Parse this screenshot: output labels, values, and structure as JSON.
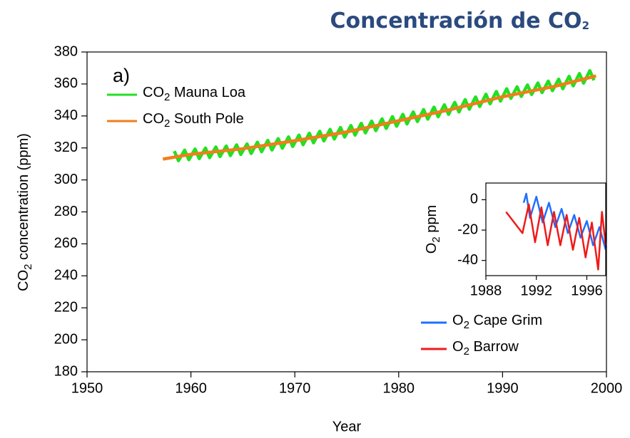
{
  "chart_data": [
    {
      "type": "line",
      "title": "Concentración de CO2",
      "annotation": "a)",
      "xlabel": "Year",
      "ylabel": "CO2 concentration (ppm)",
      "xlim": [
        1950,
        2000
      ],
      "xticks": [
        1950,
        1960,
        1970,
        1980,
        1990,
        2000
      ],
      "ylim": [
        180,
        380
      ],
      "yticks": [
        180,
        200,
        220,
        240,
        260,
        280,
        300,
        320,
        340,
        360,
        380
      ],
      "legend": "upper left",
      "series": [
        {
          "name": "CO2 Mauna Loa",
          "color": "#22e022",
          "x": [
            1958.4,
            1958.8,
            1959.4,
            1959.8,
            1960.4,
            1960.8,
            1961.4,
            1961.8,
            1962.4,
            1962.8,
            1963.4,
            1963.8,
            1964.4,
            1964.8,
            1965.4,
            1965.8,
            1966.4,
            1966.8,
            1967.4,
            1967.8,
            1968.4,
            1968.8,
            1969.4,
            1969.8,
            1970.4,
            1970.8,
            1971.4,
            1971.8,
            1972.4,
            1972.8,
            1973.4,
            1973.8,
            1974.4,
            1974.8,
            1975.4,
            1975.8,
            1976.4,
            1976.8,
            1977.4,
            1977.8,
            1978.4,
            1978.8,
            1979.4,
            1979.8,
            1980.4,
            1980.8,
            1981.4,
            1981.8,
            1982.4,
            1982.8,
            1983.4,
            1983.8,
            1984.4,
            1984.8,
            1985.4,
            1985.8,
            1986.4,
            1986.8,
            1987.4,
            1987.8,
            1988.4,
            1988.8,
            1989.4,
            1989.8,
            1990.4,
            1990.8,
            1991.4,
            1991.8,
            1992.4,
            1992.8,
            1993.4,
            1993.8,
            1994.4,
            1994.8,
            1995.4,
            1995.8,
            1996.4,
            1996.8,
            1997.4,
            1997.8,
            1998.4,
            1998.8
          ],
          "values": [
            318.0,
            312.0,
            318.6,
            312.6,
            319.3,
            313.3,
            319.9,
            313.9,
            320.6,
            314.6,
            321.2,
            315.2,
            321.9,
            315.9,
            322.5,
            316.5,
            323.6,
            317.6,
            324.7,
            318.7,
            325.8,
            319.8,
            326.9,
            320.9,
            328.0,
            322.0,
            329.2,
            323.2,
            330.4,
            324.4,
            331.6,
            325.6,
            332.8,
            326.8,
            334.0,
            328.0,
            335.4,
            329.4,
            336.8,
            330.8,
            338.2,
            332.2,
            339.6,
            333.6,
            341.0,
            335.0,
            342.5,
            336.5,
            344.0,
            338.0,
            345.5,
            339.5,
            347.0,
            341.0,
            348.5,
            342.5,
            350.2,
            344.2,
            351.9,
            345.9,
            353.6,
            347.6,
            355.3,
            349.3,
            357.0,
            351.0,
            358.2,
            352.2,
            359.4,
            353.4,
            360.6,
            354.6,
            361.8,
            355.8,
            363.0,
            357.0,
            364.8,
            358.8,
            366.5,
            360.5,
            368.3,
            362.3
          ]
        },
        {
          "name": "CO2 South Pole",
          "color": "#f07f1a",
          "x": [
            1957.3,
            1960,
            1965,
            1970,
            1975,
            1980,
            1985,
            1990,
            1995,
            1999
          ],
          "values": [
            313,
            316,
            319.5,
            324.5,
            330,
            337,
            344,
            352,
            358.5,
            365
          ]
        }
      ]
    },
    {
      "type": "line",
      "ylabel": "O2 ppm",
      "xlim": [
        1988,
        1997.5
      ],
      "xticks": [
        1988,
        1992,
        1996
      ],
      "ylim": [
        -50,
        11
      ],
      "yticks": [
        -40,
        -20,
        0
      ],
      "legend": "lower right",
      "series": [
        {
          "name": "O2 Cape Grim",
          "color": "#1f6fff",
          "x": [
            1991.0,
            1991.2,
            1991.5,
            1992.0,
            1992.5,
            1993.0,
            1993.5,
            1994.0,
            1994.5,
            1995.0,
            1995.5,
            1996.0,
            1996.5,
            1997.0,
            1997.5
          ],
          "values": [
            -2,
            4,
            -12,
            2,
            -15,
            -2,
            -18,
            -6,
            -22,
            -10,
            -25,
            -14,
            -30,
            -18,
            -33
          ]
        },
        {
          "name": "O2 Barrow",
          "color": "#f01a1a",
          "x": [
            1989.6,
            1990.9,
            1991.4,
            1991.9,
            1992.4,
            1992.9,
            1993.4,
            1993.9,
            1994.4,
            1994.9,
            1995.4,
            1995.9,
            1996.4,
            1996.9,
            1997.2,
            1997.5
          ],
          "values": [
            -8,
            -22,
            -3,
            -28,
            -5,
            -30,
            -8,
            -30,
            -10,
            -33,
            -12,
            -38,
            -15,
            -46,
            -8,
            -30
          ]
        }
      ]
    }
  ]
}
